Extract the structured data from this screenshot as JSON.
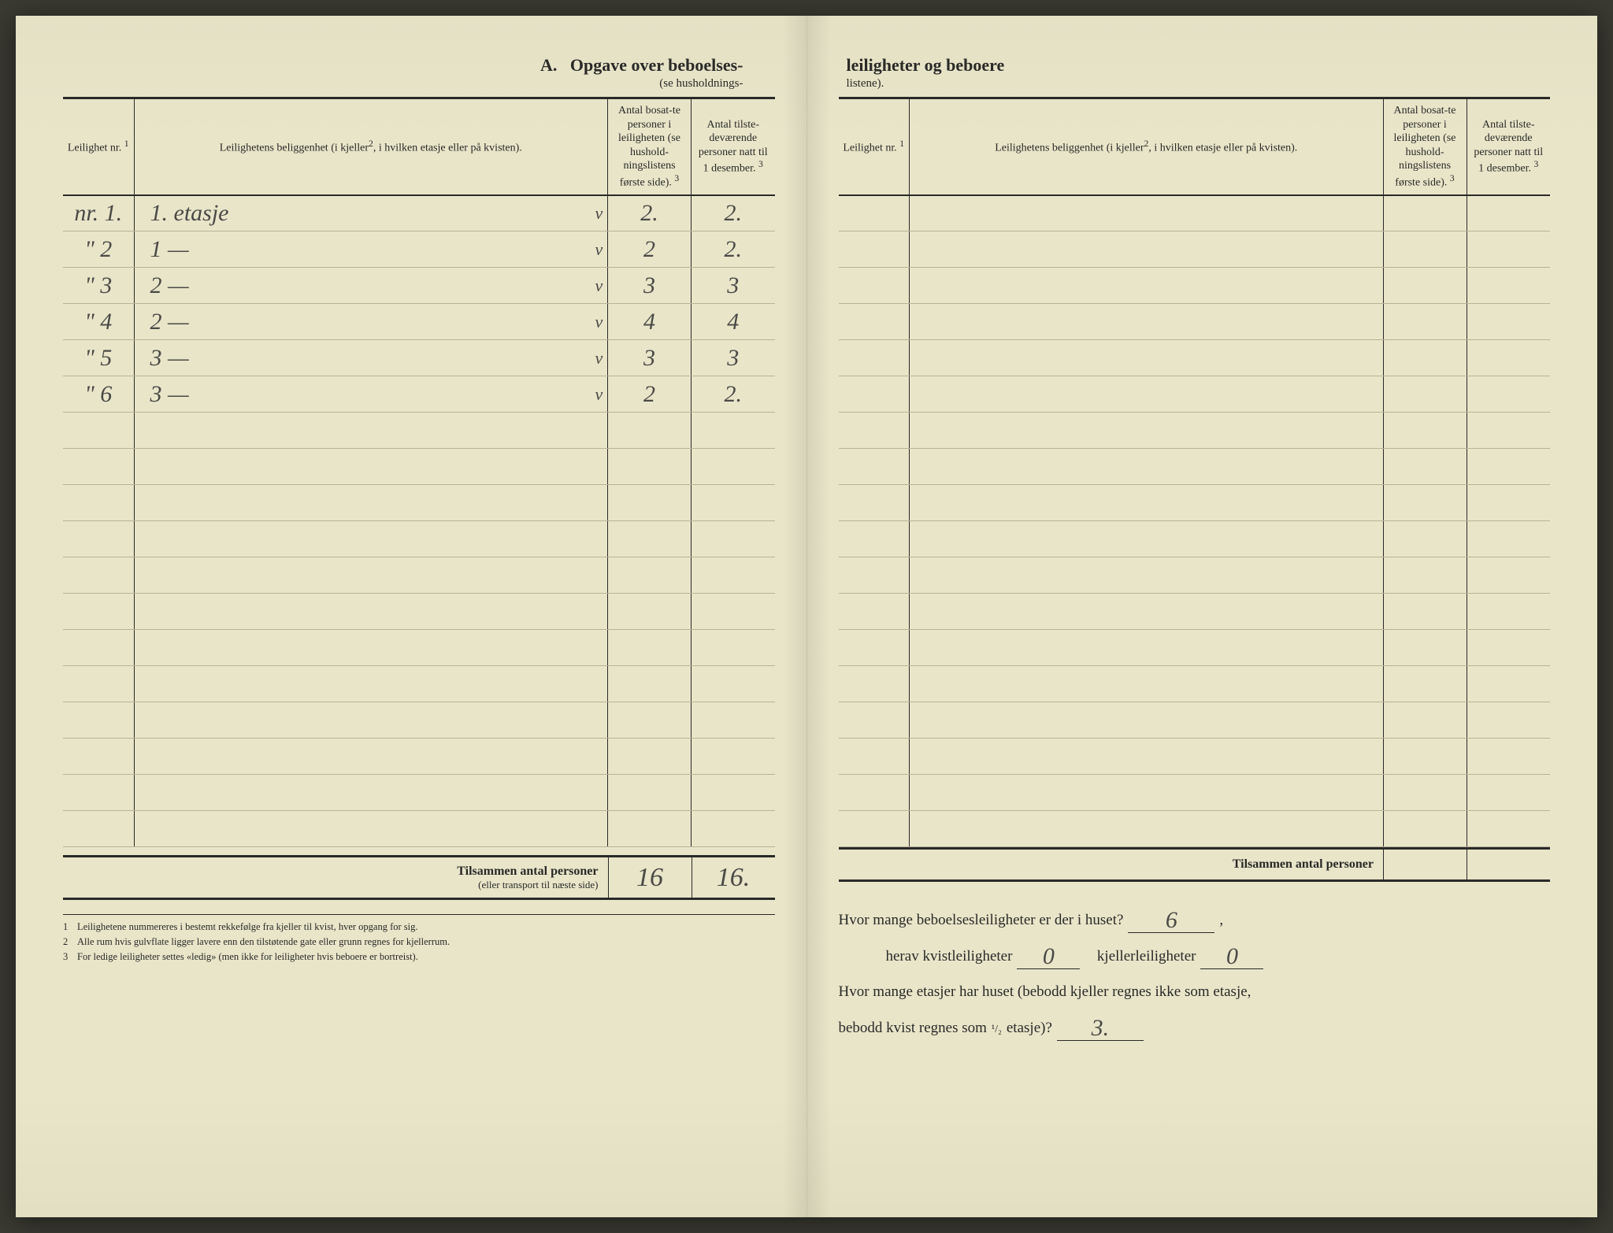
{
  "header": {
    "title_left_prefix": "A.",
    "title_left": "Opgave over beboelses-",
    "subtitle_left": "(se husholdnings-",
    "title_right": "leiligheter og beboere",
    "subtitle_right": "listene)."
  },
  "columns": {
    "c1": "Leilighet nr.",
    "c1_note": "1",
    "c2": "Leilighetens beliggenhet (i kjeller",
    "c2_note": "2",
    "c2_tail": ", i hvilken etasje eller på kvisten).",
    "c3": "Antal bosat-te personer i leiligheten (se hushold-ningslistens første side).",
    "c3_note": "3",
    "c4": "Antal tilste-deværende personer natt til 1 desember.",
    "c4_note": "3"
  },
  "left_rows": [
    {
      "nr": "nr. 1.",
      "loc": "1. etasje",
      "chk": "v",
      "p1": "2.",
      "p2": "2."
    },
    {
      "nr": "\"   2",
      "loc": "1   —",
      "chk": "v",
      "p1": "2",
      "p2": "2."
    },
    {
      "nr": "\"   3",
      "loc": "2   —",
      "chk": "v",
      "p1": "3",
      "p2": "3"
    },
    {
      "nr": "\"   4",
      "loc": "2   —",
      "chk": "v",
      "p1": "4",
      "p2": "4"
    },
    {
      "nr": "\"   5",
      "loc": "3   —",
      "chk": "v",
      "p1": "3",
      "p2": "3"
    },
    {
      "nr": "\"   6",
      "loc": "3   —",
      "chk": "v",
      "p1": "2",
      "p2": "2."
    }
  ],
  "left_blank_rows": 12,
  "right_blank_rows": 18,
  "totals": {
    "left_label_bold": "Tilsammen antal personer",
    "left_label_sub": "(eller transport til næste side)",
    "left_p1": "16",
    "left_p2": "16.",
    "right_label": "Tilsammen antal personer"
  },
  "footnotes": {
    "f1": "Leilighetene nummereres i bestemt rekkefølge fra kjeller til kvist, hver opgang for sig.",
    "f2": "Alle rum hvis gulvflate ligger lavere enn den tilstøtende gate eller grunn regnes for kjellerrum.",
    "f3": "For ledige leiligheter settes «ledig» (men ikke for leiligheter hvis beboere er bortreist)."
  },
  "questions": {
    "q1": "Hvor mange beboelsesleiligheter er der i huset?",
    "q1_ans": "6",
    "q1_tail": ",",
    "q2a": "herav kvistleiligheter",
    "q2a_ans": "0",
    "q2b": "kjellerleiligheter",
    "q2b_ans": "0",
    "q3a": "Hvor mange etasjer har huset (bebodd kjeller regnes ikke som etasje,",
    "q3b": "bebodd kvist regnes som",
    "q3_frac": "¹/₂",
    "q3c": "etasje)?",
    "q3_ans": "3."
  },
  "layout": {
    "col_widths": {
      "c1": 90,
      "c2": 330,
      "chk": 20,
      "c3": 106,
      "c4": 106
    }
  },
  "colors": {
    "paper": "#e8e5c9",
    "ink": "#2a2a28",
    "rule_light": "#b8b498",
    "handwriting": "#4a4a46"
  }
}
